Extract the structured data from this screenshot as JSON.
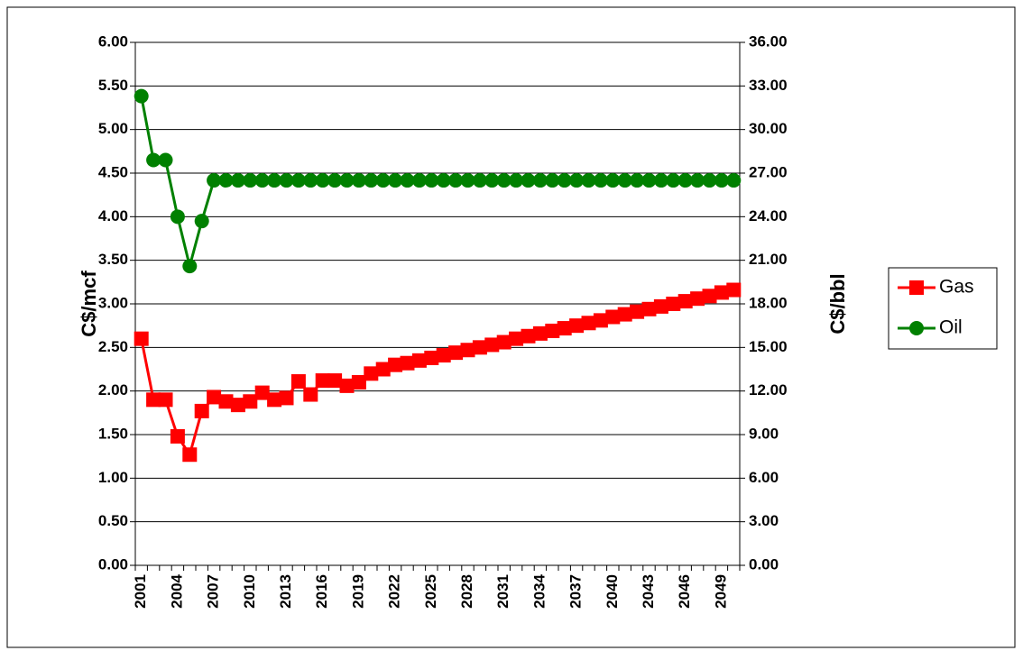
{
  "chart_data": {
    "type": "line",
    "categories": [
      2001,
      null,
      null,
      2004,
      null,
      null,
      2007,
      null,
      null,
      2010,
      null,
      null,
      2013,
      null,
      null,
      2016,
      null,
      null,
      2019,
      null,
      null,
      2022,
      null,
      null,
      2025,
      null,
      null,
      2028,
      null,
      null,
      2031,
      null,
      null,
      2034,
      null,
      null,
      2037,
      null,
      null,
      2040,
      null,
      null,
      2043,
      null,
      null,
      2046,
      null,
      null,
      2049,
      null
    ],
    "y_label": "C$/mcf",
    "y2_label": "C$/bbl",
    "ylim": [
      0,
      6
    ],
    "yticks": [
      {
        "value": 0,
        "label": "0.00"
      },
      {
        "value": 0.5,
        "label": "0.50"
      },
      {
        "value": 1,
        "label": "1.00"
      },
      {
        "value": 1.5,
        "label": "1.50"
      },
      {
        "value": 2,
        "label": "2.00"
      },
      {
        "value": 2.5,
        "label": "2.50"
      },
      {
        "value": 3,
        "label": "3.00"
      },
      {
        "value": 3.5,
        "label": "3.50"
      },
      {
        "value": 4,
        "label": "4.00"
      },
      {
        "value": 4.5,
        "label": "4.50"
      },
      {
        "value": 5,
        "label": "5.00"
      },
      {
        "value": 5.5,
        "label": "5.50"
      },
      {
        "value": 6,
        "label": "6.00"
      }
    ],
    "y2lim": [
      0,
      36
    ],
    "y2ticks": [
      {
        "value": 0,
        "label": "0.00"
      },
      {
        "value": 3,
        "label": "3.00"
      },
      {
        "value": 6,
        "label": "6.00"
      },
      {
        "value": 9,
        "label": "9.00"
      },
      {
        "value": 12,
        "label": "12.00"
      },
      {
        "value": 15,
        "label": "15.00"
      },
      {
        "value": 18,
        "label": "18.00"
      },
      {
        "value": 21,
        "label": "21.00"
      },
      {
        "value": 24,
        "label": "24.00"
      },
      {
        "value": 27,
        "label": "27.00"
      },
      {
        "value": 30,
        "label": "30.00"
      },
      {
        "value": 33,
        "label": "33.00"
      },
      {
        "value": 36,
        "label": "36.00"
      }
    ],
    "grid": true,
    "legend": "right",
    "series": [
      {
        "name": "Gas",
        "color": "#ff0000",
        "marker": "square",
        "values": [
          2.6,
          1.9,
          1.9,
          1.48,
          1.27,
          1.77,
          1.93,
          1.88,
          1.84,
          1.88,
          1.98,
          1.9,
          1.92,
          2.11,
          1.96,
          2.12,
          2.12,
          2.06,
          2.1,
          2.2,
          2.25,
          2.3,
          2.32,
          2.35,
          2.38,
          2.41,
          2.44,
          2.47,
          2.5,
          2.53,
          2.56,
          2.6,
          2.63,
          2.66,
          2.69,
          2.72,
          2.75,
          2.78,
          2.81,
          2.85,
          2.88,
          2.91,
          2.94,
          2.97,
          3.0,
          3.03,
          3.06,
          3.09,
          3.13,
          3.16
        ]
      },
      {
        "name": "Oil",
        "color": "#008000",
        "marker": "circle",
        "axis": "y2",
        "values": [
          32.3,
          27.9,
          27.9,
          24.0,
          20.6,
          23.7,
          26.5,
          26.5,
          26.5,
          26.5,
          26.5,
          26.5,
          26.5,
          26.5,
          26.5,
          26.5,
          26.5,
          26.5,
          26.5,
          26.5,
          26.5,
          26.5,
          26.5,
          26.5,
          26.5,
          26.5,
          26.5,
          26.5,
          26.5,
          26.5,
          26.5,
          26.5,
          26.5,
          26.5,
          26.5,
          26.5,
          26.5,
          26.5,
          26.5,
          26.5,
          26.5,
          26.5,
          26.5,
          26.5,
          26.5,
          26.5,
          26.5,
          26.5,
          26.5,
          26.5
        ]
      }
    ]
  }
}
